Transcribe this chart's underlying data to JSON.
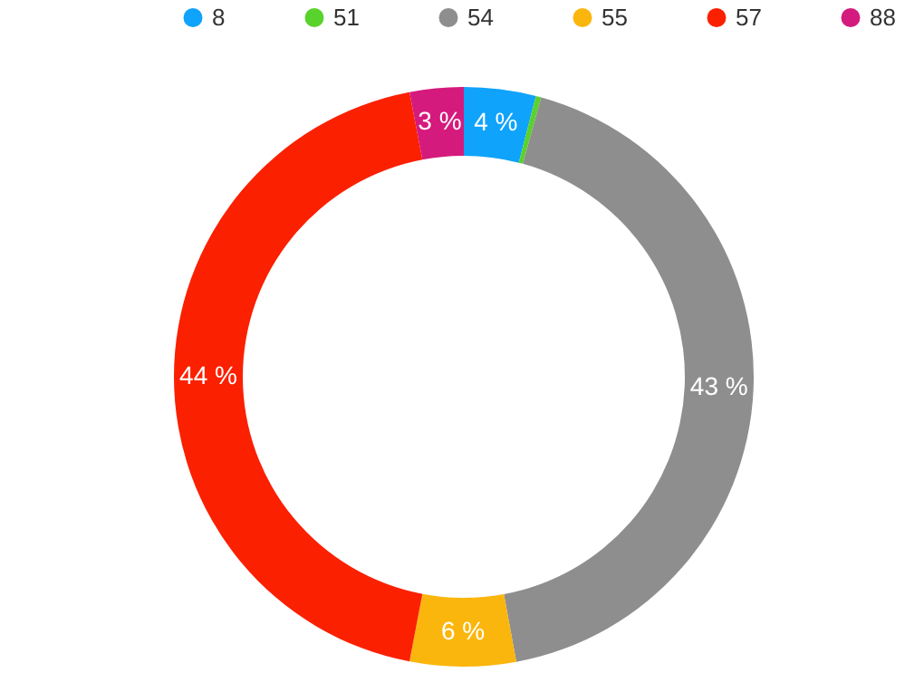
{
  "chart_data": {
    "type": "donut",
    "categories": [
      "8",
      "51",
      "54",
      "55",
      "57",
      "88"
    ],
    "values": [
      4,
      0.3,
      42.8,
      5.9,
      44,
      3
    ],
    "colors": [
      "#0fa3fb",
      "#5ad22c",
      "#8e8e8e",
      "#fbb60d",
      "#fb2000",
      "#d51a7d"
    ],
    "value_labels": [
      "4 %",
      null,
      "43 %",
      "6 %",
      "44 %",
      "3 %"
    ],
    "legend": "top"
  }
}
